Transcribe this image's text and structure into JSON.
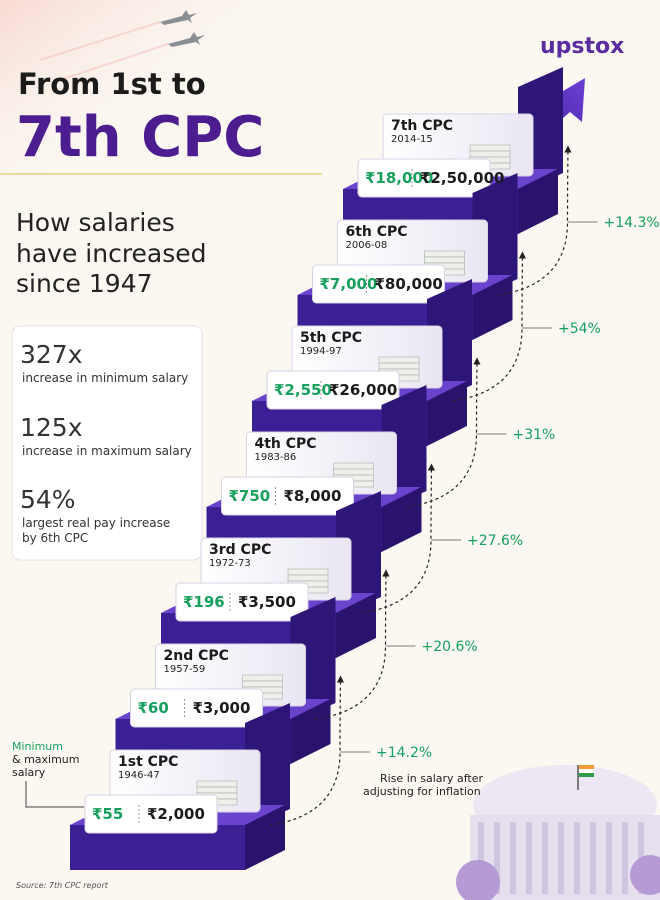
{
  "brand": "upstox",
  "title": {
    "line1": "From 1st to",
    "line2": "7th CPC"
  },
  "subtitle": [
    "How salaries",
    "have increased",
    "since 1947"
  ],
  "stats": [
    {
      "value": "327x",
      "label": [
        "increase in minimum salary"
      ]
    },
    {
      "value": "125x",
      "label": [
        "increase in maximum salary"
      ]
    },
    {
      "value": "54%",
      "label": [
        "largest real pay increase",
        "by 6th CPC"
      ]
    }
  ],
  "steps": [
    {
      "name": "1st CPC",
      "years": "1946-47",
      "min": "₹55",
      "max": "₹2,000"
    },
    {
      "name": "2nd CPC",
      "years": "1957-59",
      "min": "₹60",
      "max": "₹3,000"
    },
    {
      "name": "3rd CPC",
      "years": "1972-73",
      "min": "₹196",
      "max": "₹3,500"
    },
    {
      "name": "4th CPC",
      "years": "1983-86",
      "min": "₹750",
      "max": "₹8,000"
    },
    {
      "name": "5th CPC",
      "years": "1994-97",
      "min": "₹2,550",
      "max": "₹26,000"
    },
    {
      "name": "6th CPC",
      "years": "2006-08",
      "min": "₹7,000",
      "max": "₹80,000"
    },
    {
      "name": "7th CPC",
      "years": "2014-15",
      "min": "₹18,000",
      "max": "₹2,50,000"
    }
  ],
  "increases": [
    "+14.2%",
    "+20.6%",
    "+27.6%",
    "+31%",
    "+54%",
    "+14.3%"
  ],
  "legend": [
    "Minimum",
    "& maximum",
    "salary"
  ],
  "note": [
    "Rise in salary after",
    "adjusting for inflation"
  ],
  "source": "Source: 7th CPC report"
}
